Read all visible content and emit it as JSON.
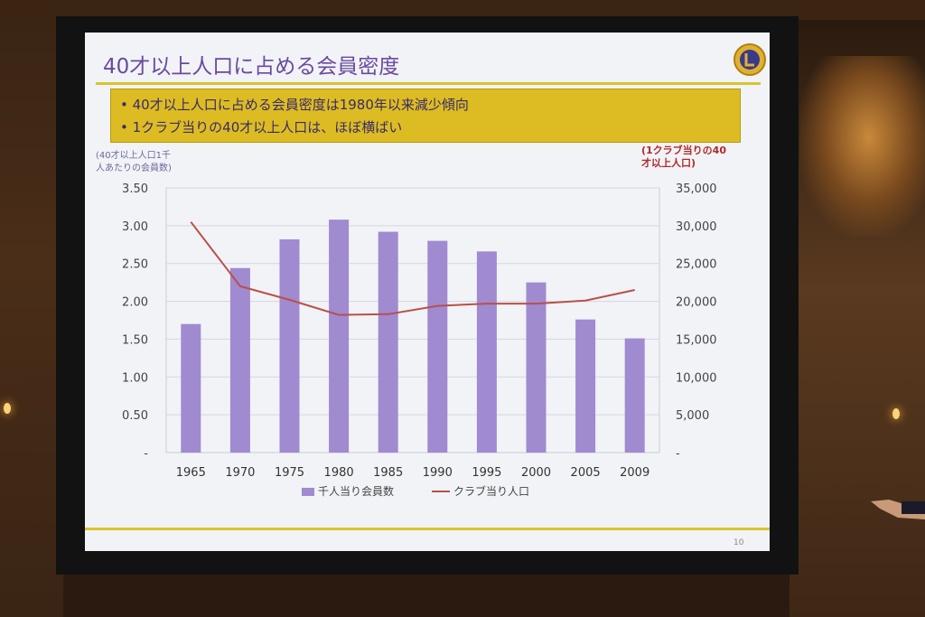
{
  "slide": {
    "title": "40才以上人口に占める会員密度",
    "bullets": [
      "40才以上人口に占める会員密度は1980年以来減少傾向",
      "1クラブ当りの40才以上人口は、ほぼ横ばい"
    ],
    "left_axis_note": "(40才以上人口1千\n人あたりの会員数)",
    "right_axis_note": "(1クラブ当りの40\n才以上人口)",
    "page_number": "10"
  },
  "chart_data": {
    "type": "bar",
    "categories": [
      "1965",
      "1970",
      "1975",
      "1980",
      "1985",
      "1990",
      "1995",
      "2000",
      "2005",
      "2009"
    ],
    "series": [
      {
        "name": "千人当り会員数",
        "kind": "bar",
        "axis": "left",
        "color": "#a08ad0",
        "values": [
          1.7,
          2.44,
          2.82,
          3.08,
          2.92,
          2.8,
          2.66,
          2.25,
          1.76,
          1.51
        ]
      },
      {
        "name": "クラブ当り人口",
        "kind": "line",
        "axis": "right",
        "color": "#b8504a",
        "values": [
          30500,
          22000,
          20200,
          18200,
          18300,
          19400,
          19700,
          19700,
          20100,
          21500
        ]
      }
    ],
    "left_axis": {
      "ylim": [
        0,
        3.5
      ],
      "tick_labels": [
        "-",
        "0.50",
        "1.00",
        "1.50",
        "2.00",
        "2.50",
        "3.00",
        "3.50"
      ]
    },
    "right_axis": {
      "ylim": [
        0,
        35000
      ],
      "tick_labels": [
        "-",
        "5,000",
        "10,000",
        "15,000",
        "20,000",
        "25,000",
        "30,000",
        "35,000"
      ]
    },
    "grid": true,
    "legend_position": "bottom"
  }
}
